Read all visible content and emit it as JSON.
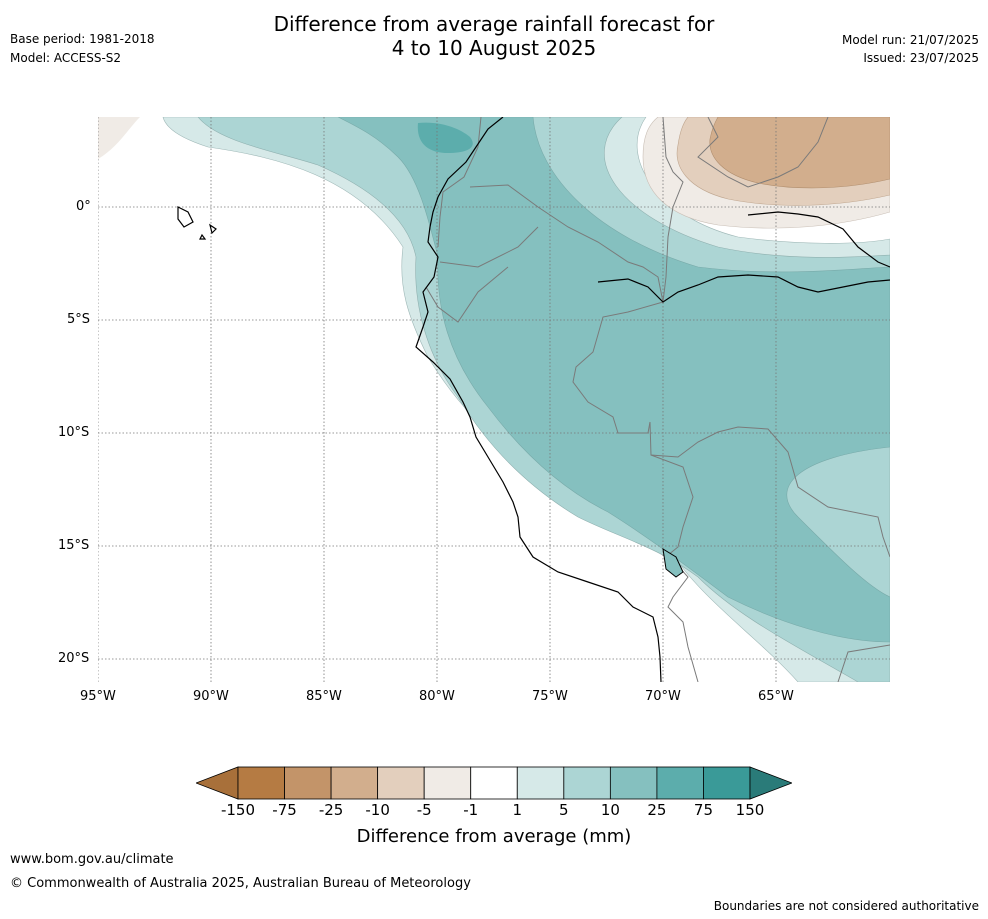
{
  "header": {
    "base_period": "Base period: 1981-2018",
    "model": "Model: ACCESS-S2",
    "title_line1": "Difference from average rainfall forecast for",
    "title_line2": "4 to 10 August 2025",
    "model_run": "Model run: 21/07/2025",
    "issued": "Issued: 23/07/2025"
  },
  "map": {
    "lat_ticks": [
      "0°",
      "5°S",
      "10°S",
      "15°S",
      "20°S"
    ],
    "lon_ticks": [
      "95°W",
      "90°W",
      "85°W",
      "80°W",
      "75°W",
      "70°W",
      "65°W"
    ],
    "region": "western South America and eastern Pacific"
  },
  "colorbar": {
    "title": "Difference from average (mm)",
    "labels": [
      "-150",
      "-75",
      "-25",
      "-10",
      "-5",
      "-1",
      "1",
      "5",
      "10",
      "25",
      "75",
      "150"
    ],
    "colors": [
      "#a8703a",
      "#b57b43",
      "#c39469",
      "#d2ae8d",
      "#e3cfbd",
      "#f0ebe6",
      "#ffffff",
      "#d6e9e8",
      "#acd5d4",
      "#85c0bf",
      "#5cadac",
      "#3a9a98",
      "#2a7b79"
    ]
  },
  "footer": {
    "url": "www.bom.gov.au/climate",
    "copyright": "© Commonwealth of Australia 2025, Australian Bureau of Meteorology",
    "disclaimer": "Boundaries are not considered authoritative"
  }
}
